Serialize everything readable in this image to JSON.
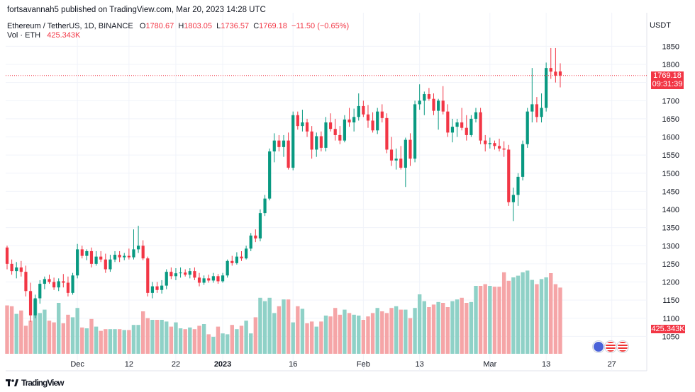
{
  "publisher": "fortsavannah5 published on TradingView.com, Mar 20, 2023 14:28 UTC",
  "symbol": "Ethereum / TetherUS, 1D, BINANCE",
  "ohlc": {
    "o_label": "O",
    "o": "1780.67",
    "h_label": "H",
    "h": "1803.05",
    "l_label": "L",
    "l": "1736.57",
    "c_label": "C",
    "c": "1769.18",
    "change": "−11.50 (−0.65%)"
  },
  "volume": {
    "label": "Vol · ETH",
    "value": "425.343K"
  },
  "currency": "USDT",
  "last_price": "1769.18",
  "countdown": "09:31:39",
  "volume_tag": "425.343K",
  "footer_logo": "TradingView",
  "colors": {
    "up": "#089981",
    "down": "#f23645",
    "vol_up": "#8fd1c7",
    "vol_down": "#f5a5a7"
  },
  "chart_data": {
    "type": "candlestick",
    "interval": "1D",
    "y_ticks": [
      1050,
      1100,
      1150,
      1200,
      1250,
      1300,
      1350,
      1400,
      1450,
      1500,
      1550,
      1600,
      1650,
      1700,
      1750,
      1800,
      1850
    ],
    "ylim": [
      1000,
      1880
    ],
    "x_ticks": [
      {
        "index": 15,
        "label": "Dec"
      },
      {
        "index": 26,
        "label": "12"
      },
      {
        "index": 36,
        "label": "22"
      },
      {
        "index": 46,
        "label": "2023"
      },
      {
        "index": 61,
        "label": "16"
      },
      {
        "index": 76,
        "label": "Feb"
      },
      {
        "index": 88,
        "label": "13"
      },
      {
        "index": 103,
        "label": "Mar"
      },
      {
        "index": 115,
        "label": "13"
      },
      {
        "index": 129,
        "label": "27"
      }
    ],
    "last_index": 121,
    "candles": [
      [
        1295,
        1300,
        1235,
        1250
      ],
      [
        1250,
        1262,
        1220,
        1230
      ],
      [
        1230,
        1255,
        1210,
        1240
      ],
      [
        1240,
        1258,
        1215,
        1228
      ],
      [
        1228,
        1245,
        1160,
        1175
      ],
      [
        1175,
        1198,
        1090,
        1108
      ],
      [
        1108,
        1165,
        1100,
        1155
      ],
      [
        1155,
        1205,
        1140,
        1195
      ],
      [
        1195,
        1215,
        1180,
        1208
      ],
      [
        1208,
        1220,
        1195,
        1200
      ],
      [
        1200,
        1212,
        1178,
        1185
      ],
      [
        1185,
        1210,
        1175,
        1202
      ],
      [
        1202,
        1222,
        1185,
        1198
      ],
      [
        1198,
        1215,
        1160,
        1170
      ],
      [
        1170,
        1225,
        1165,
        1218
      ],
      [
        1218,
        1305,
        1210,
        1290
      ],
      [
        1290,
        1300,
        1265,
        1272
      ],
      [
        1272,
        1290,
        1260,
        1285
      ],
      [
        1285,
        1295,
        1240,
        1250
      ],
      [
        1250,
        1285,
        1245,
        1270
      ],
      [
        1270,
        1285,
        1255,
        1262
      ],
      [
        1262,
        1278,
        1225,
        1235
      ],
      [
        1235,
        1275,
        1228,
        1262
      ],
      [
        1262,
        1285,
        1255,
        1275
      ],
      [
        1275,
        1285,
        1255,
        1268
      ],
      [
        1268,
        1280,
        1260,
        1272
      ],
      [
        1272,
        1292,
        1262,
        1268
      ],
      [
        1268,
        1345,
        1262,
        1290
      ],
      [
        1290,
        1355,
        1280,
        1300
      ],
      [
        1300,
        1315,
        1260,
        1265
      ],
      [
        1265,
        1270,
        1160,
        1170
      ],
      [
        1170,
        1200,
        1155,
        1188
      ],
      [
        1188,
        1200,
        1170,
        1178
      ],
      [
        1178,
        1205,
        1168,
        1190
      ],
      [
        1190,
        1235,
        1180,
        1228
      ],
      [
        1228,
        1240,
        1208,
        1216
      ],
      [
        1216,
        1238,
        1205,
        1224
      ],
      [
        1224,
        1240,
        1212,
        1226
      ],
      [
        1226,
        1235,
        1215,
        1220
      ],
      [
        1220,
        1238,
        1210,
        1230
      ],
      [
        1230,
        1240,
        1205,
        1212
      ],
      [
        1212,
        1225,
        1188,
        1198
      ],
      [
        1198,
        1218,
        1192,
        1210
      ],
      [
        1210,
        1220,
        1198,
        1204
      ],
      [
        1204,
        1225,
        1198,
        1216
      ],
      [
        1216,
        1222,
        1195,
        1202
      ],
      [
        1202,
        1225,
        1198,
        1218
      ],
      [
        1218,
        1262,
        1212,
        1258
      ],
      [
        1258,
        1272,
        1245,
        1252
      ],
      [
        1252,
        1282,
        1248,
        1270
      ],
      [
        1270,
        1285,
        1258,
        1265
      ],
      [
        1265,
        1300,
        1262,
        1292
      ],
      [
        1292,
        1335,
        1285,
        1328
      ],
      [
        1328,
        1345,
        1310,
        1320
      ],
      [
        1320,
        1400,
        1312,
        1390
      ],
      [
        1390,
        1440,
        1382,
        1430
      ],
      [
        1430,
        1568,
        1425,
        1560
      ],
      [
        1560,
        1610,
        1530,
        1590
      ],
      [
        1590,
        1605,
        1560,
        1572
      ],
      [
        1572,
        1605,
        1545,
        1590
      ],
      [
        1590,
        1612,
        1510,
        1515
      ],
      [
        1515,
        1670,
        1508,
        1660
      ],
      [
        1660,
        1670,
        1620,
        1630
      ],
      [
        1630,
        1675,
        1615,
        1640
      ],
      [
        1640,
        1650,
        1600,
        1615
      ],
      [
        1615,
        1630,
        1540,
        1565
      ],
      [
        1565,
        1612,
        1545,
        1602
      ],
      [
        1602,
        1615,
        1560,
        1570
      ],
      [
        1570,
        1655,
        1560,
        1640
      ],
      [
        1640,
        1665,
        1615,
        1622
      ],
      [
        1622,
        1650,
        1590,
        1605
      ],
      [
        1605,
        1630,
        1580,
        1590
      ],
      [
        1590,
        1660,
        1585,
        1648
      ],
      [
        1648,
        1680,
        1628,
        1640
      ],
      [
        1640,
        1678,
        1615,
        1655
      ],
      [
        1655,
        1720,
        1645,
        1685
      ],
      [
        1685,
        1700,
        1655,
        1662
      ],
      [
        1662,
        1688,
        1625,
        1645
      ],
      [
        1645,
        1668,
        1612,
        1618
      ],
      [
        1618,
        1680,
        1608,
        1670
      ],
      [
        1670,
        1690,
        1640,
        1652
      ],
      [
        1652,
        1665,
        1555,
        1565
      ],
      [
        1565,
        1600,
        1520,
        1535
      ],
      [
        1535,
        1568,
        1510,
        1540
      ],
      [
        1540,
        1575,
        1510,
        1515
      ],
      [
        1515,
        1598,
        1462,
        1592
      ],
      [
        1592,
        1610,
        1520,
        1540
      ],
      [
        1540,
        1700,
        1530,
        1690
      ],
      [
        1690,
        1745,
        1675,
        1700
      ],
      [
        1700,
        1725,
        1660,
        1718
      ],
      [
        1718,
        1735,
        1700,
        1705
      ],
      [
        1705,
        1720,
        1660,
        1672
      ],
      [
        1672,
        1705,
        1620,
        1700
      ],
      [
        1700,
        1740,
        1662,
        1670
      ],
      [
        1670,
        1690,
        1600,
        1612
      ],
      [
        1612,
        1650,
        1585,
        1628
      ],
      [
        1628,
        1650,
        1600,
        1640
      ],
      [
        1640,
        1680,
        1618,
        1625
      ],
      [
        1625,
        1660,
        1590,
        1605
      ],
      [
        1605,
        1660,
        1600,
        1650
      ],
      [
        1650,
        1680,
        1640,
        1668
      ],
      [
        1668,
        1680,
        1580,
        1590
      ],
      [
        1590,
        1605,
        1560,
        1580
      ],
      [
        1580,
        1598,
        1568,
        1583
      ],
      [
        1583,
        1590,
        1565,
        1575
      ],
      [
        1575,
        1595,
        1560,
        1568
      ],
      [
        1568,
        1588,
        1545,
        1565
      ],
      [
        1565,
        1578,
        1410,
        1420
      ],
      [
        1420,
        1460,
        1368,
        1440
      ],
      [
        1440,
        1500,
        1410,
        1490
      ],
      [
        1490,
        1590,
        1480,
        1580
      ],
      [
        1580,
        1680,
        1570,
        1670
      ],
      [
        1670,
        1790,
        1640,
        1690
      ],
      [
        1690,
        1710,
        1640,
        1655
      ],
      [
        1655,
        1720,
        1640,
        1680
      ],
      [
        1680,
        1805,
        1670,
        1790
      ],
      [
        1790,
        1845,
        1760,
        1780
      ],
      [
        1780,
        1845,
        1750,
        1769
      ],
      [
        1780.67,
        1803.05,
        1736.57,
        1769.18
      ]
    ],
    "volume_scale_pct": [
      57,
      56,
      47,
      51,
      33,
      39,
      64,
      48,
      52,
      39,
      37,
      60,
      36,
      46,
      43,
      54,
      31,
      30,
      41,
      32,
      27,
      29,
      29,
      29,
      29,
      28,
      28,
      34,
      34,
      50,
      42,
      40,
      40,
      40,
      38,
      32,
      37,
      30,
      29,
      31,
      29,
      33,
      35,
      23,
      20,
      32,
      24,
      23,
      34,
      29,
      33,
      39,
      24,
      43,
      66,
      62,
      66,
      48,
      56,
      64,
      64,
      37,
      56,
      53,
      36,
      38,
      32,
      38,
      45,
      44,
      54,
      46,
      52,
      48,
      46,
      45,
      40,
      44,
      48,
      54,
      50,
      48,
      54,
      56,
      52,
      52,
      42,
      54,
      70,
      62,
      55,
      58,
      61,
      60,
      55,
      62,
      64,
      66,
      60,
      61,
      80,
      80,
      82,
      80,
      79,
      79,
      96,
      86,
      90,
      92,
      96,
      98,
      87,
      82,
      88,
      90,
      95,
      82,
      78
    ]
  }
}
